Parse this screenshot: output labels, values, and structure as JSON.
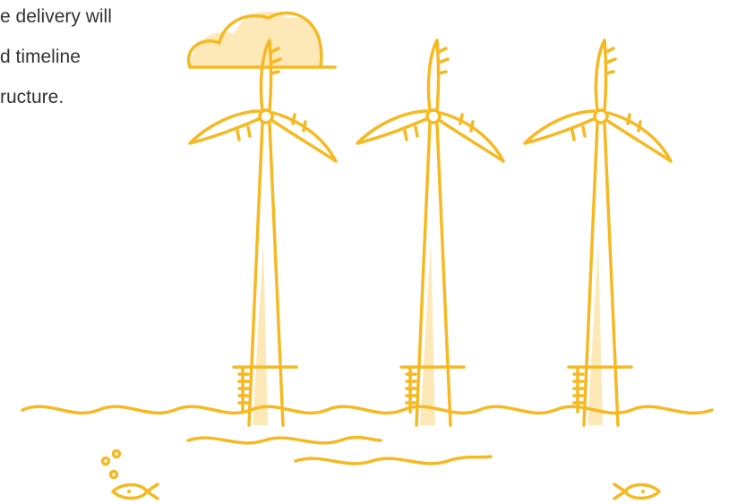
{
  "paragraph": {
    "lines": [
      "e delivery will",
      "d timeline",
      "ructure."
    ]
  }
}
